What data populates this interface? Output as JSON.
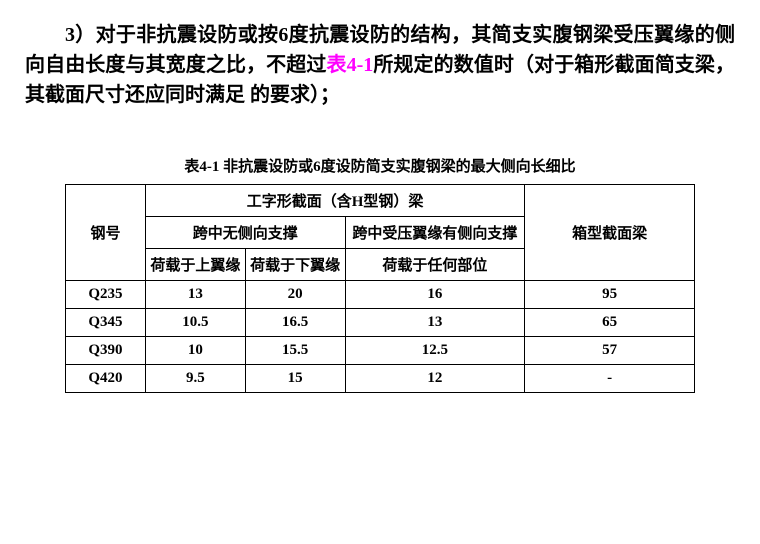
{
  "paragraph": {
    "num": "3）",
    "text1": "对于非抗震设防或按",
    "bold6": "6",
    "text2": "度抗震设防的结构，其简支实腹钢梁受压翼缘的侧向自由长度与其宽度之比，不超过",
    "highlight": "表4-1",
    "text3": "所规定的数值时（对于箱形截面简支梁，其截面尺寸还应同时满足 的要求）；"
  },
  "tableTitle": "表4-1 非抗震设防或6度设防简支实腹钢梁的最大侧向长细比",
  "headers": {
    "steel": "钢号",
    "iSection": "工字形截面（含H型钢）梁",
    "noLateral": "跨中无侧向支撑",
    "withLateral": "跨中受压翼缘有侧向支撑",
    "boxSection": "箱型截面梁",
    "loadTop": "荷载于上翼缘",
    "loadBottom": "荷载于下翼缘",
    "loadAny": "荷载于任何部位"
  },
  "rows": [
    {
      "steel": "Q235",
      "v1": "13",
      "v2": "20",
      "v3": "16",
      "v4": "95"
    },
    {
      "steel": "Q345",
      "v1": "10.5",
      "v2": "16.5",
      "v3": "13",
      "v4": "65"
    },
    {
      "steel": "Q390",
      "v1": "10",
      "v2": "15.5",
      "v3": "12.5",
      "v4": "57"
    },
    {
      "steel": "Q420",
      "v1": "9.5",
      "v2": "15",
      "v3": "12",
      "v4": "-"
    }
  ]
}
